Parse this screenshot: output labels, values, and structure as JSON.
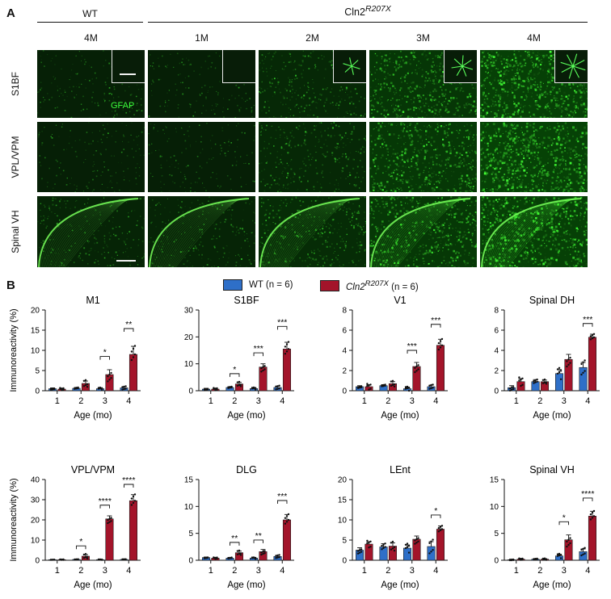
{
  "panelA": {
    "letter": "A",
    "group_wt": "WT",
    "group_cln2": "Cln2",
    "group_cln2_sup": "R207X",
    "columns": [
      "4M",
      "1M",
      "2M",
      "3M",
      "4M"
    ],
    "rows": [
      "S1BF",
      "VPL/VPM",
      "Spinal VH"
    ],
    "stain_label": "GFAP",
    "signal_density": [
      [
        0.15,
        0.12,
        0.35,
        0.7,
        0.95
      ],
      [
        0.12,
        0.12,
        0.35,
        0.75,
        1.0
      ],
      [
        0.25,
        0.25,
        0.45,
        0.75,
        0.95
      ]
    ]
  },
  "panelB": {
    "letter": "B",
    "legend": {
      "wt_label": "WT (n = 6)",
      "cln2_label": "Cln2",
      "cln2_sup": "R207X",
      "cln2_suffix": " (n = 6)"
    },
    "colors": {
      "wt": "#2e6fc8",
      "cln2": "#a3142a"
    },
    "ylabel": "Immunoreactivity (%)",
    "xlabel": "Age (mo)"
  },
  "chart_data": [
    {
      "type": "bar",
      "title": "M1",
      "categories": [
        "1",
        "2",
        "3",
        "4"
      ],
      "ylim": [
        0,
        20
      ],
      "yticks": [
        0,
        5,
        10,
        15,
        20
      ],
      "series": [
        {
          "name": "WT (n = 6)",
          "values": [
            0.5,
            0.6,
            0.5,
            0.7
          ],
          "err": [
            0.2,
            0.2,
            0.2,
            0.3
          ]
        },
        {
          "name": "Cln2 R207X (n = 6)",
          "values": [
            0.4,
            1.8,
            4.0,
            9.0
          ],
          "err": [
            0.2,
            0.6,
            1.2,
            2.0
          ]
        }
      ],
      "significance": [
        {
          "x": "3",
          "label": "*"
        },
        {
          "x": "4",
          "label": "**"
        }
      ]
    },
    {
      "type": "bar",
      "title": "S1BF",
      "categories": [
        "1",
        "2",
        "3",
        "4"
      ],
      "ylim": [
        0,
        30
      ],
      "yticks": [
        0,
        10,
        20,
        30
      ],
      "series": [
        {
          "name": "WT (n = 6)",
          "values": [
            0.6,
            1.2,
            0.8,
            1.2
          ],
          "err": [
            0.3,
            0.3,
            0.3,
            0.5
          ]
        },
        {
          "name": "Cln2 R207X (n = 6)",
          "values": [
            0.6,
            2.5,
            8.8,
            15.5
          ],
          "err": [
            0.3,
            0.6,
            1.2,
            2.5
          ]
        }
      ],
      "significance": [
        {
          "x": "2",
          "label": "*"
        },
        {
          "x": "3",
          "label": "***"
        },
        {
          "x": "4",
          "label": "***"
        }
      ]
    },
    {
      "type": "bar",
      "title": "V1",
      "categories": [
        "1",
        "2",
        "3",
        "4"
      ],
      "ylim": [
        0,
        8
      ],
      "yticks": [
        0,
        2,
        4,
        6,
        8
      ],
      "series": [
        {
          "name": "WT (n = 6)",
          "values": [
            0.4,
            0.5,
            0.2,
            0.4
          ],
          "err": [
            0.1,
            0.1,
            0.15,
            0.15
          ]
        },
        {
          "name": "Cln2 R207X (n = 6)",
          "values": [
            0.4,
            0.7,
            2.4,
            4.5
          ],
          "err": [
            0.2,
            0.2,
            0.4,
            0.6
          ]
        }
      ],
      "significance": [
        {
          "x": "3",
          "label": "***"
        },
        {
          "x": "4",
          "label": "***"
        }
      ]
    },
    {
      "type": "bar",
      "title": "Spinal DH",
      "categories": [
        "1",
        "2",
        "3",
        "4"
      ],
      "ylim": [
        0,
        8
      ],
      "yticks": [
        0,
        2,
        4,
        6,
        8
      ],
      "series": [
        {
          "name": "WT (n = 6)",
          "values": [
            0.3,
            0.9,
            1.7,
            2.3
          ],
          "err": [
            0.2,
            0.2,
            0.4,
            0.5
          ]
        },
        {
          "name": "Cln2 R207X (n = 6)",
          "values": [
            0.9,
            0.9,
            3.1,
            5.3
          ],
          "err": [
            0.3,
            0.15,
            0.5,
            0.3
          ]
        }
      ],
      "significance": [
        {
          "x": "4",
          "label": "***"
        }
      ]
    },
    {
      "type": "bar",
      "title": "VPL/VPM",
      "categories": [
        "1",
        "2",
        "3",
        "4"
      ],
      "ylim": [
        0,
        40
      ],
      "yticks": [
        0,
        10,
        20,
        30,
        40
      ],
      "series": [
        {
          "name": "WT (n = 6)",
          "values": [
            0.3,
            0.4,
            0.3,
            0.4
          ],
          "err": [
            0.1,
            0.1,
            0.1,
            0.1
          ]
        },
        {
          "name": "Cln2 R207X (n = 6)",
          "values": [
            0.3,
            2.0,
            20.5,
            29.5
          ],
          "err": [
            0.1,
            0.8,
            1.5,
            3.0
          ]
        }
      ],
      "significance": [
        {
          "x": "2",
          "label": "*"
        },
        {
          "x": "3",
          "label": "****"
        },
        {
          "x": "4",
          "label": "****"
        }
      ]
    },
    {
      "type": "bar",
      "title": "DLG",
      "categories": [
        "1",
        "2",
        "3",
        "4"
      ],
      "ylim": [
        0,
        15
      ],
      "yticks": [
        0,
        5,
        10,
        15
      ],
      "series": [
        {
          "name": "WT (n = 6)",
          "values": [
            0.5,
            0.4,
            0.4,
            0.7
          ],
          "err": [
            0.1,
            0.1,
            0.1,
            0.2
          ]
        },
        {
          "name": "Cln2 R207X (n = 6)",
          "values": [
            0.4,
            1.4,
            1.6,
            7.5
          ],
          "err": [
            0.1,
            0.3,
            0.4,
            1.0
          ]
        }
      ],
      "significance": [
        {
          "x": "2",
          "label": "**"
        },
        {
          "x": "3",
          "label": "**"
        },
        {
          "x": "4",
          "label": "***"
        }
      ]
    },
    {
      "type": "bar",
      "title": "LEnt",
      "categories": [
        "1",
        "2",
        "3",
        "4"
      ],
      "ylim": [
        0,
        20
      ],
      "yticks": [
        0,
        5,
        10,
        15,
        20
      ],
      "series": [
        {
          "name": "WT (n = 6)",
          "values": [
            2.5,
            3.3,
            3.0,
            3.4
          ],
          "err": [
            0.6,
            0.8,
            0.8,
            1.2
          ]
        },
        {
          "name": "Cln2 R207X (n = 6)",
          "values": [
            4.0,
            3.5,
            5.2,
            7.7
          ],
          "err": [
            0.6,
            0.8,
            0.8,
            0.8
          ]
        }
      ],
      "significance": [
        {
          "x": "4",
          "label": "*"
        }
      ]
    },
    {
      "type": "bar",
      "title": "Spinal VH",
      "categories": [
        "1",
        "2",
        "3",
        "4"
      ],
      "ylim": [
        0,
        15
      ],
      "yticks": [
        0,
        5,
        10,
        15
      ],
      "series": [
        {
          "name": "WT (n = 6)",
          "values": [
            0.1,
            0.2,
            0.8,
            1.6
          ],
          "err": [
            0.1,
            0.1,
            0.3,
            0.5
          ]
        },
        {
          "name": "Cln2 R207X (n = 6)",
          "values": [
            0.2,
            0.2,
            3.8,
            8.2
          ],
          "err": [
            0.1,
            0.1,
            0.9,
            0.9
          ]
        }
      ],
      "significance": [
        {
          "x": "3",
          "label": "*"
        },
        {
          "x": "4",
          "label": "****"
        }
      ]
    }
  ]
}
